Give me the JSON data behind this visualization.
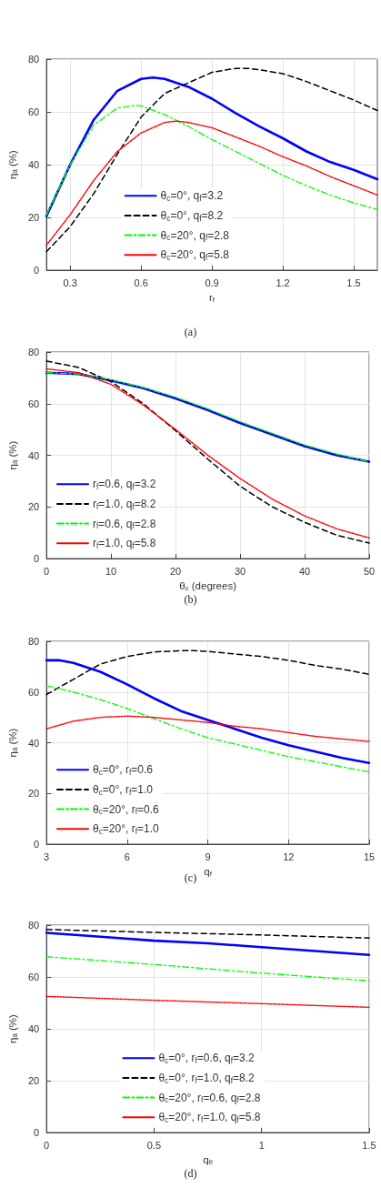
{
  "chart_data": [
    {
      "type": "line",
      "xlabel": "r$_{f}$",
      "ylabel": "ηₐ (%)",
      "xlim": [
        0.2,
        1.6
      ],
      "xticks": [
        0.3,
        0.6,
        0.9,
        1.2,
        1.5
      ],
      "ylim": [
        0,
        80
      ],
      "yticks": [
        0,
        20,
        40,
        60,
        80
      ],
      "grid": true,
      "legend": "bottom",
      "marker": "none",
      "annotations": [
        "(a)"
      ],
      "series": [
        {
          "name": "θ$_{c}$=0°, q$_{f}$=3.2",
          "color": "#0000ff",
          "line_style": "solid",
          "x": [
            0.2,
            0.3,
            0.4,
            0.5,
            0.6,
            0.65,
            0.7,
            0.8,
            0.9,
            1.0,
            1.1,
            1.2,
            1.3,
            1.4,
            1.5,
            1.6
          ],
          "values": [
            20.5,
            40,
            57,
            68,
            72.5,
            73,
            72.5,
            69.5,
            65,
            59.5,
            54.5,
            50,
            45,
            41,
            38,
            34.5
          ]
        },
        {
          "name": "θ$_{c}$=0°, q$_{f}$=8.2",
          "color": "#000000",
          "line_style": "dashed",
          "x": [
            0.2,
            0.3,
            0.4,
            0.5,
            0.6,
            0.7,
            0.8,
            0.9,
            1.0,
            1.05,
            1.1,
            1.2,
            1.3,
            1.4,
            1.5,
            1.6
          ],
          "values": [
            7,
            16.5,
            29,
            44,
            58,
            67,
            71,
            75,
            76.5,
            76.5,
            76,
            74.5,
            71.5,
            68,
            64.5,
            60.5
          ]
        },
        {
          "name": "θ$_{c}$=20°, q$_{f}$=2.8",
          "color": "#00ff00",
          "line_style": "dashdot",
          "x": [
            0.2,
            0.3,
            0.4,
            0.5,
            0.58,
            0.6,
            0.7,
            0.8,
            0.9,
            1.0,
            1.1,
            1.2,
            1.3,
            1.4,
            1.5,
            1.6
          ],
          "values": [
            21,
            40,
            55,
            61.5,
            62.5,
            62.3,
            59,
            54.5,
            49.5,
            45,
            40.5,
            36,
            32,
            28.5,
            25.5,
            23
          ]
        },
        {
          "name": "θ$_{c}$=20°, q$_{f}$=5.8",
          "color": "#ff0000",
          "line_style": "dotted",
          "x": [
            0.2,
            0.3,
            0.4,
            0.5,
            0.6,
            0.7,
            0.75,
            0.8,
            0.9,
            1.0,
            1.1,
            1.2,
            1.3,
            1.4,
            1.5,
            1.6
          ],
          "values": [
            9.5,
            21,
            34,
            45,
            52,
            56,
            56.5,
            56,
            54,
            50.5,
            47,
            43,
            39.5,
            35.5,
            32,
            28.5
          ]
        }
      ]
    },
    {
      "type": "line",
      "xlabel": "θ$_{c}$ (degrees)",
      "ylabel": "ηₐ (%)",
      "xlim": [
        0,
        50
      ],
      "xticks": [
        0,
        10,
        20,
        30,
        40,
        50
      ],
      "ylim": [
        0,
        80
      ],
      "yticks": [
        0,
        20,
        40,
        60,
        80
      ],
      "grid": true,
      "legend": "bottom left",
      "marker": "none",
      "annotations": [
        "(b)"
      ],
      "series": [
        {
          "name": "r$_{f}$=0.6, q$_{f}$=3.2",
          "color": "#0000ff",
          "line_style": "solid",
          "x": [
            0,
            5,
            10,
            15,
            20,
            25,
            30,
            35,
            40,
            45,
            50
          ],
          "values": [
            72,
            71.5,
            69,
            66,
            62,
            57.5,
            52.5,
            48,
            43.5,
            40,
            37.5
          ]
        },
        {
          "name": "r$_{f}$=1.0, q$_{f}$=8.2",
          "color": "#000000",
          "line_style": "dashed",
          "x": [
            0,
            5,
            10,
            15,
            20,
            25,
            30,
            35,
            40,
            45,
            50
          ],
          "values": [
            76.5,
            74,
            68.5,
            60,
            49.5,
            38.5,
            28,
            20,
            14,
            9,
            6
          ]
        },
        {
          "name": "r$_{f}$=0.6, q$_{f}$=2.8",
          "color": "#00ff00",
          "line_style": "dashdot",
          "x": [
            0,
            5,
            10,
            15,
            20,
            25,
            30,
            35,
            40,
            45,
            50
          ],
          "values": [
            72,
            71.5,
            69.3,
            66.3,
            62.5,
            58,
            53,
            48.5,
            44,
            40.5,
            37.5
          ]
        },
        {
          "name": "r$_{f}$=1.0, q$_{f}$=5.8",
          "color": "#ff0000",
          "line_style": "dotted",
          "x": [
            0,
            5,
            10,
            15,
            20,
            25,
            30,
            35,
            40,
            45,
            50
          ],
          "values": [
            73.5,
            72,
            67.5,
            59.5,
            50,
            40,
            31,
            23,
            16.5,
            11.5,
            8
          ]
        }
      ]
    },
    {
      "type": "line",
      "xlabel": "q$_{f}$",
      "ylabel": "ηₐ (%)",
      "xlim": [
        3,
        15
      ],
      "xticks": [
        3,
        6,
        9,
        12,
        15
      ],
      "ylim": [
        0,
        80
      ],
      "yticks": [
        0,
        20,
        40,
        60,
        80
      ],
      "grid": true,
      "legend": "bottom left",
      "marker": "none",
      "annotations": [
        "(c)"
      ],
      "series": [
        {
          "name": "θ$_{c}$=0°, r$_{f}$=0.6",
          "color": "#0000ff",
          "line_style": "solid",
          "x": [
            3,
            3.5,
            4,
            5,
            6,
            7,
            8,
            9,
            10,
            11,
            12,
            13,
            14,
            15
          ],
          "values": [
            72.5,
            72.5,
            71.5,
            68,
            63,
            57.5,
            52.5,
            49,
            45.5,
            42,
            39,
            36.5,
            34,
            32
          ]
        },
        {
          "name": "θ$_{c}$=0°, r$_{f}$=1.0",
          "color": "#000000",
          "line_style": "dashed",
          "x": [
            3,
            4,
            5,
            6,
            7,
            8,
            8.5,
            9,
            10,
            11,
            12,
            13,
            14,
            15
          ],
          "values": [
            59,
            65,
            71,
            74,
            75.8,
            76.3,
            76.3,
            76,
            75,
            74,
            72.5,
            70.5,
            69,
            67
          ]
        },
        {
          "name": "θ$_{c}$=20°, r$_{f}$=0.6",
          "color": "#00ff00",
          "line_style": "dashdot",
          "x": [
            3,
            4,
            5,
            6,
            7,
            8,
            9,
            10,
            11,
            12,
            13,
            14,
            15
          ],
          "values": [
            62.5,
            60,
            57,
            53.5,
            49.5,
            45.5,
            42,
            39.5,
            37,
            34.5,
            32.5,
            30.5,
            28.5
          ]
        },
        {
          "name": "θ$_{c}$=20°, r$_{f}$=1.0",
          "color": "#ff0000",
          "line_style": "dotted",
          "x": [
            3,
            4,
            5,
            6,
            7,
            8,
            9,
            10,
            11,
            12,
            13,
            14,
            15
          ],
          "values": [
            45.5,
            48.5,
            50,
            50.5,
            50,
            49,
            48,
            46.5,
            45.5,
            44,
            42.5,
            41.5,
            40.5
          ]
        }
      ]
    },
    {
      "type": "line",
      "xlabel": "qₑ",
      "ylabel": "ηₐ (%)",
      "xlim": [
        0,
        1.5
      ],
      "xticks": [
        0,
        0.5,
        1,
        1.5
      ],
      "ylim": [
        0,
        80
      ],
      "yticks": [
        0,
        20,
        40,
        60,
        80
      ],
      "grid": true,
      "legend": "bottom",
      "marker": "none",
      "annotations": [
        "(d)"
      ],
      "series": [
        {
          "name": "θ$_{c}$=0°, r$_{f}$=0.6, q$_{f}$=3.2",
          "color": "#0000ff",
          "line_style": "solid",
          "x": [
            0,
            0.25,
            0.5,
            0.75,
            1,
            1.25,
            1.5
          ],
          "values": [
            77,
            75.5,
            74,
            73,
            71.5,
            70,
            68.5
          ]
        },
        {
          "name": "θ$_{c}$=0°, r$_{f}$=1.0, q$_{f}$=8.2",
          "color": "#000000",
          "line_style": "dashed",
          "x": [
            0,
            0.5,
            1,
            1.5
          ],
          "values": [
            78.3,
            77.2,
            76.2,
            75
          ]
        },
        {
          "name": "θ$_{c}$=20°, r$_{f}$=0.6, q$_{f}$=2.8",
          "color": "#00ff00",
          "line_style": "dashdot",
          "x": [
            0,
            0.5,
            1,
            1.5
          ],
          "values": [
            67.8,
            64.8,
            61.5,
            58.5
          ]
        },
        {
          "name": "θ$_{c}$=20°, r$_{f}$=1.0, q$_{f}$=5.8",
          "color": "#ff0000",
          "line_style": "dotted",
          "x": [
            0,
            0.5,
            1,
            1.5
          ],
          "values": [
            52.5,
            51,
            49.7,
            48.3
          ]
        }
      ]
    }
  ]
}
